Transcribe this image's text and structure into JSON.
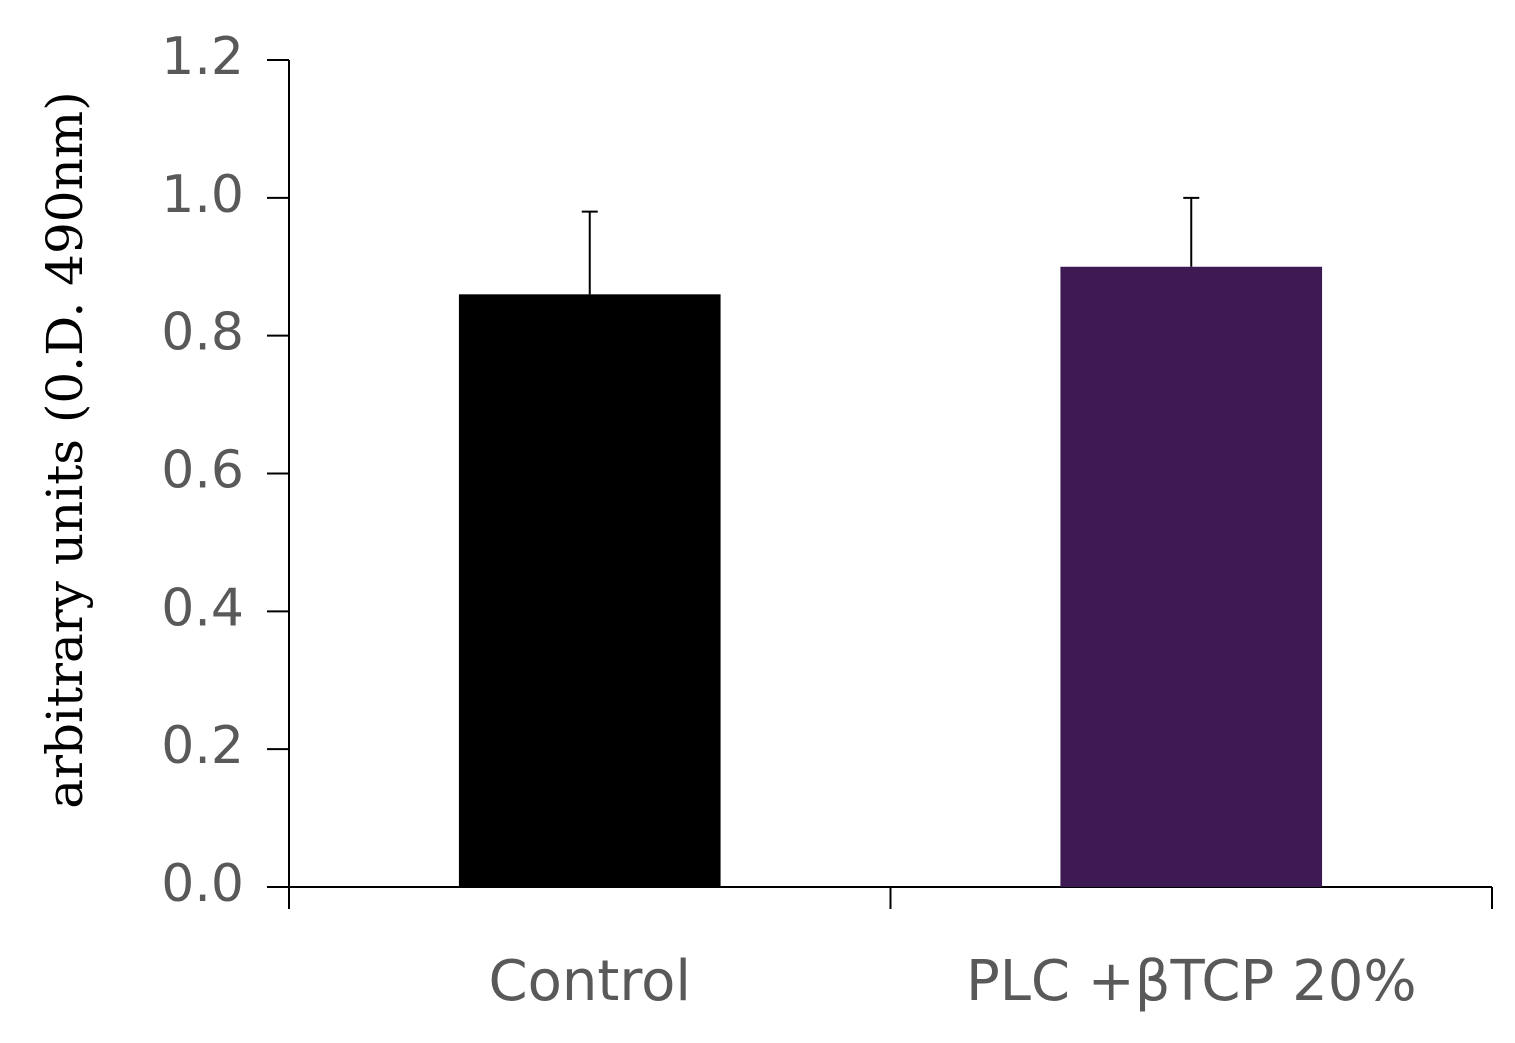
{
  "chart_data": {
    "type": "bar",
    "ylabel": "arbitrary units (0.D. 490nm)",
    "xlabel": "",
    "categories": [
      "Control",
      "PLC +βTCP 20%"
    ],
    "values": [
      0.86,
      0.9
    ],
    "error_bars_upper": [
      0.12,
      0.1
    ],
    "bar_colors": [
      "#000000",
      "#3e1a55"
    ],
    "ylim": [
      0,
      1.2
    ],
    "yticks": [
      "0.0",
      "0.2",
      "0.4",
      "0.6",
      "0.8",
      "1.0",
      "1.2"
    ],
    "grid": false,
    "legend": "none"
  }
}
